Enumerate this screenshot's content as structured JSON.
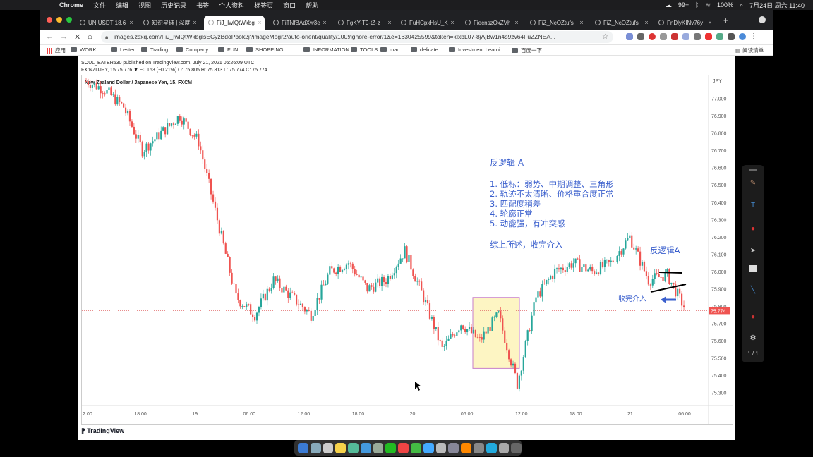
{
  "menubar": {
    "app": "Chrome",
    "items": [
      "文件",
      "编辑",
      "视图",
      "历史记录",
      "书签",
      "个人资料",
      "标签页",
      "窗口",
      "帮助"
    ],
    "badge": "99+",
    "battery": "100%",
    "datetime": "7月24日 周六 11:40"
  },
  "tabs": [
    {
      "label": "UNIUSDT 18.6",
      "active": false
    },
    {
      "label": "知识星球 | 深度",
      "active": false
    },
    {
      "label": "FiJ_IwlQtWkbg",
      "active": true
    },
    {
      "label": "FiTNfBAdXw3e",
      "active": false
    },
    {
      "label": "FgKY-T9-tZ-z",
      "active": false
    },
    {
      "label": "FuHCpxHsU_K",
      "active": false
    },
    {
      "label": "FiecnszOxZVh",
      "active": false
    },
    {
      "label": "FiZ_NcOZtufs",
      "active": false
    },
    {
      "label": "FiZ_NcOZtufs",
      "active": false
    },
    {
      "label": "FnDlyKINv76y",
      "active": false
    }
  ],
  "address": {
    "url": "images.zsxq.com/FiJ_IwlQtWkbglsECyzBdoPbok2j?imageMogr2/auto-orient/quality/100!/ignore-error/1&e=1630425599&token=kIxbL07-8jAjBw1n4s9zv64FuZZNEA..."
  },
  "bookmarks": {
    "apps": "应用",
    "items": [
      "WORK",
      "Lester",
      "Trading",
      "Company",
      "FUN",
      "SHOPPING",
      "INFORMATION",
      "TOOLS",
      "mac",
      "delicate",
      "Investment Learni...",
      "百度一下"
    ],
    "reading_list": "阅读清单"
  },
  "tv": {
    "header1": "SOUL_EATER530 published on TradingView.com, July 21, 2021 06:26:09 UTC",
    "header2": "FX:NZDJPY, 15  75.776 ▼ −0.163 (−0.21%) O: 75.805 H: 75.813 L: 75.774 C: 75.774",
    "symbol_title": "New Zealand Dollar / Japanese Yen, 15, FXCM",
    "currency": "JPY",
    "footer": "TradingView",
    "price_label": "75.774",
    "y_ticks": [
      "77.000",
      "76.900",
      "76.800",
      "76.700",
      "76.600",
      "76.500",
      "76.400",
      "76.300",
      "76.200",
      "76.100",
      "76.000",
      "75.900",
      "75.800",
      "75.700",
      "75.600",
      "75.500",
      "75.400",
      "75.300"
    ],
    "x_ticks": [
      "12:00",
      "18:00",
      "19",
      "06:00",
      "12:00",
      "18:00",
      "20",
      "06:00",
      "12:00",
      "18:00",
      "21",
      "06:00"
    ]
  },
  "annotations": {
    "title": "反逻辑 A",
    "points": [
      "1. 低标：弱势、中期调整、三角形",
      "2. 轨迹不太清晰、价格重合度正常",
      "3. 匹配度稍差",
      "4. 轮廓正常",
      "5. 动能强，有冲突感"
    ],
    "summary": "综上所述，收完介入",
    "tag": "反逻辑A",
    "entry": "收完介入"
  },
  "chart_data": {
    "type": "candlestick",
    "title": "New Zealand Dollar / Japanese Yen, 15, FXCM",
    "ylim": [
      75.25,
      77.1
    ],
    "x_ticks": [
      "12:00",
      "18:00",
      "19",
      "06:00",
      "12:00",
      "18:00",
      "20",
      "06:00",
      "12:00",
      "18:00",
      "21",
      "06:00"
    ],
    "close_path": [
      77.1,
      77.05,
      76.95,
      76.7,
      76.8,
      76.9,
      76.75,
      76.3,
      75.85,
      75.75,
      75.95,
      75.85,
      75.75,
      76.0,
      76.05,
      75.9,
      75.95,
      76.12,
      75.85,
      75.55,
      75.7,
      75.6,
      75.75,
      75.35,
      75.85,
      76.0,
      76.05,
      76.0,
      76.05,
      76.2,
      75.95,
      75.98,
      75.774
    ],
    "last_price": 75.774
  },
  "rtools": {
    "page": "1 / 1"
  }
}
